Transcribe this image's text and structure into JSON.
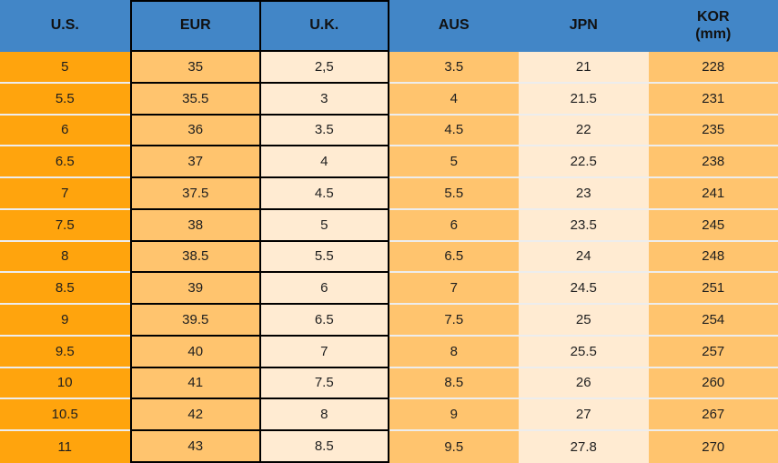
{
  "colors": {
    "header_bg": "#4286c7",
    "us_bg": "#ffa40d",
    "orange_bg": "#ffc46e",
    "cream_bg": "#ffebd2",
    "border_dark": "#000000",
    "row_divider": "#ededed",
    "text": "#1f1f1f"
  },
  "chart_data": {
    "type": "table",
    "columns": [
      {
        "key": "us",
        "label": "U.S.",
        "sublabel": "",
        "style": "dark-orange",
        "bordered": false
      },
      {
        "key": "eur",
        "label": "EUR",
        "sublabel": "",
        "style": "light-orange",
        "bordered": true
      },
      {
        "key": "uk",
        "label": "U.K.",
        "sublabel": "",
        "style": "cream",
        "bordered": true
      },
      {
        "key": "aus",
        "label": "AUS",
        "sublabel": "",
        "style": "light-orange",
        "bordered": false
      },
      {
        "key": "jpn",
        "label": "JPN",
        "sublabel": "",
        "style": "cream",
        "bordered": false
      },
      {
        "key": "kor",
        "label": "KOR",
        "sublabel": "(mm)",
        "style": "light-orange",
        "bordered": false
      }
    ],
    "rows": [
      [
        "5",
        "35",
        "2,5",
        "3.5",
        "21",
        "228"
      ],
      [
        "5.5",
        "35.5",
        "3",
        "4",
        "21.5",
        "231"
      ],
      [
        "6",
        "36",
        "3.5",
        "4.5",
        "22",
        "235"
      ],
      [
        "6.5",
        "37",
        "4",
        "5",
        "22.5",
        "238"
      ],
      [
        "7",
        "37.5",
        "4.5",
        "5.5",
        "23",
        "241"
      ],
      [
        "7.5",
        "38",
        "5",
        "6",
        "23.5",
        "245"
      ],
      [
        "8",
        "38.5",
        "5.5",
        "6.5",
        "24",
        "248"
      ],
      [
        "8.5",
        "39",
        "6",
        "7",
        "24.5",
        "251"
      ],
      [
        "9",
        "39.5",
        "6.5",
        "7.5",
        "25",
        "254"
      ],
      [
        "9.5",
        "40",
        "7",
        "8",
        "25.5",
        "257"
      ],
      [
        "10",
        "41",
        "7.5",
        "8.5",
        "26",
        "260"
      ],
      [
        "10.5",
        "42",
        "8",
        "9",
        "27",
        "267"
      ],
      [
        "11",
        "43",
        "8.5",
        "9.5",
        "27.8",
        "270"
      ]
    ]
  }
}
